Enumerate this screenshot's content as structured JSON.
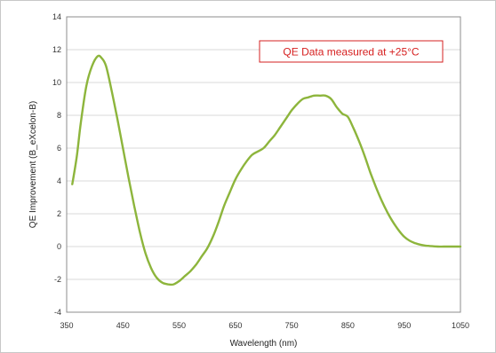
{
  "chart_data": {
    "type": "line",
    "xlabel": "Wavelength (nm)",
    "ylabel": "QE Improvement (B_eXcelon-B)",
    "xlim": [
      350,
      1050
    ],
    "ylim": [
      -4,
      14
    ],
    "xticks": [
      350,
      450,
      550,
      650,
      750,
      850,
      950,
      1050
    ],
    "yticks": [
      -4,
      -2,
      0,
      2,
      4,
      6,
      8,
      10,
      12,
      14
    ],
    "grid": "horizontal",
    "annotation": "QE Data measured at +25°C",
    "series_color": "#8db53c",
    "series": [
      {
        "x": [
          360,
          368,
          375,
          385,
          395,
          405,
          412,
          420,
          430,
          440,
          450,
          460,
          470,
          480,
          490,
          500,
          510,
          520,
          530,
          540,
          550,
          560,
          570,
          580,
          590,
          600,
          610,
          620,
          630,
          640,
          650,
          660,
          670,
          680,
          690,
          700,
          710,
          720,
          730,
          740,
          750,
          760,
          770,
          780,
          790,
          800,
          810,
          820,
          830,
          840,
          850,
          860,
          870,
          880,
          890,
          900,
          910,
          920,
          930,
          940,
          950,
          960,
          970,
          980,
          990,
          1000,
          1010,
          1020,
          1030,
          1040,
          1050
        ],
        "y": [
          3.8,
          5.5,
          7.5,
          9.8,
          11.0,
          11.6,
          11.5,
          11.0,
          9.5,
          7.8,
          6.0,
          4.2,
          2.5,
          0.9,
          -0.4,
          -1.3,
          -1.9,
          -2.2,
          -2.3,
          -2.3,
          -2.1,
          -1.8,
          -1.5,
          -1.1,
          -0.6,
          -0.1,
          0.6,
          1.5,
          2.5,
          3.3,
          4.1,
          4.7,
          5.2,
          5.6,
          5.8,
          6.0,
          6.4,
          6.8,
          7.3,
          7.8,
          8.3,
          8.7,
          9.0,
          9.1,
          9.2,
          9.2,
          9.2,
          9.0,
          8.5,
          8.1,
          7.9,
          7.2,
          6.4,
          5.5,
          4.5,
          3.6,
          2.8,
          2.1,
          1.5,
          1.0,
          0.6,
          0.35,
          0.2,
          0.1,
          0.05,
          0.02,
          0.0,
          0.0,
          0.0,
          0.0,
          0.0
        ]
      }
    ]
  }
}
